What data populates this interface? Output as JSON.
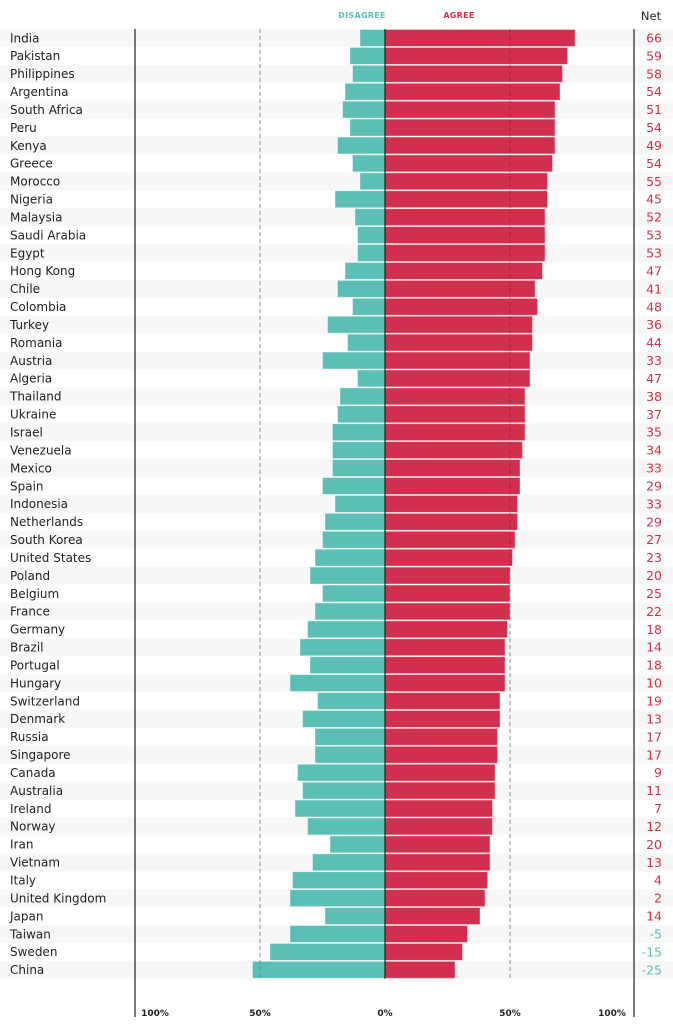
{
  "chart_data": {
    "type": "bar",
    "subtype": "diverging-horizontal",
    "title": "",
    "legend": {
      "disagree": "DISAGREE",
      "agree": "AGREE",
      "placement": "top-center"
    },
    "net_header": "Net",
    "colors": {
      "agree": "#d0304e",
      "disagree": "#5bbfb5",
      "net_positive": "#d0304e",
      "net_negative": "#5bbfb5"
    },
    "x_ticks": [
      "100%",
      "50%",
      "0%",
      "50%",
      "100%"
    ],
    "xlim": [
      -100,
      100
    ],
    "categories": [
      "India",
      "Pakistan",
      "Philippines",
      "Argentina",
      "South Africa",
      "Peru",
      "Kenya",
      "Greece",
      "Morocco",
      "Nigeria",
      "Malaysia",
      "Saudi Arabia",
      "Egypt",
      "Hong Kong",
      "Chile",
      "Colombia",
      "Turkey",
      "Romania",
      "Austria",
      "Algeria",
      "Thailand",
      "Ukraine",
      "Israel",
      "Venezuela",
      "Mexico",
      "Spain",
      "Indonesia",
      "Netherlands",
      "South Korea",
      "United States",
      "Poland",
      "Belgium",
      "France",
      "Germany",
      "Brazil",
      "Portugal",
      "Hungary",
      "Switzerland",
      "Denmark",
      "Russia",
      "Singapore",
      "Canada",
      "Australia",
      "Ireland",
      "Norway",
      "Iran",
      "Vietnam",
      "Italy",
      "United Kingdom",
      "Japan",
      "Taiwan",
      "Sweden",
      "China"
    ],
    "series": [
      {
        "name": "Agree",
        "values": [
          76,
          73,
          71,
          70,
          68,
          68,
          68,
          67,
          65,
          65,
          64,
          64,
          64,
          63,
          60,
          61,
          59,
          59,
          58,
          58,
          56,
          56,
          56,
          55,
          54,
          54,
          53,
          53,
          52,
          51,
          50,
          50,
          50,
          49,
          48,
          48,
          48,
          46,
          46,
          45,
          45,
          44,
          44,
          43,
          43,
          42,
          42,
          41,
          40,
          38,
          33,
          31,
          28
        ]
      },
      {
        "name": "Disagree",
        "values": [
          10,
          14,
          13,
          16,
          17,
          14,
          19,
          13,
          10,
          20,
          12,
          11,
          11,
          16,
          19,
          13,
          23,
          15,
          25,
          11,
          18,
          19,
          21,
          21,
          21,
          25,
          20,
          24,
          25,
          28,
          30,
          25,
          28,
          31,
          34,
          30,
          38,
          27,
          33,
          28,
          28,
          35,
          33,
          36,
          31,
          22,
          29,
          37,
          38,
          24,
          38,
          46,
          53
        ]
      }
    ],
    "net": [
      "66",
      "59",
      "58",
      "54",
      "51",
      "54",
      "49",
      "54",
      "55",
      "45",
      "52",
      "53",
      "53",
      "47",
      "41",
      "48",
      "36",
      "44",
      "33",
      "47",
      "38",
      "37",
      "35",
      "34",
      "33",
      "29",
      "33",
      "29",
      "27",
      "23",
      "20",
      "25",
      "22",
      "18",
      "14",
      "18",
      "10",
      "19",
      "13",
      "17",
      "17",
      "9",
      "11",
      "7",
      "12",
      "20",
      "13",
      "4",
      "2",
      "14",
      "-5",
      "-15",
      "-25"
    ]
  }
}
